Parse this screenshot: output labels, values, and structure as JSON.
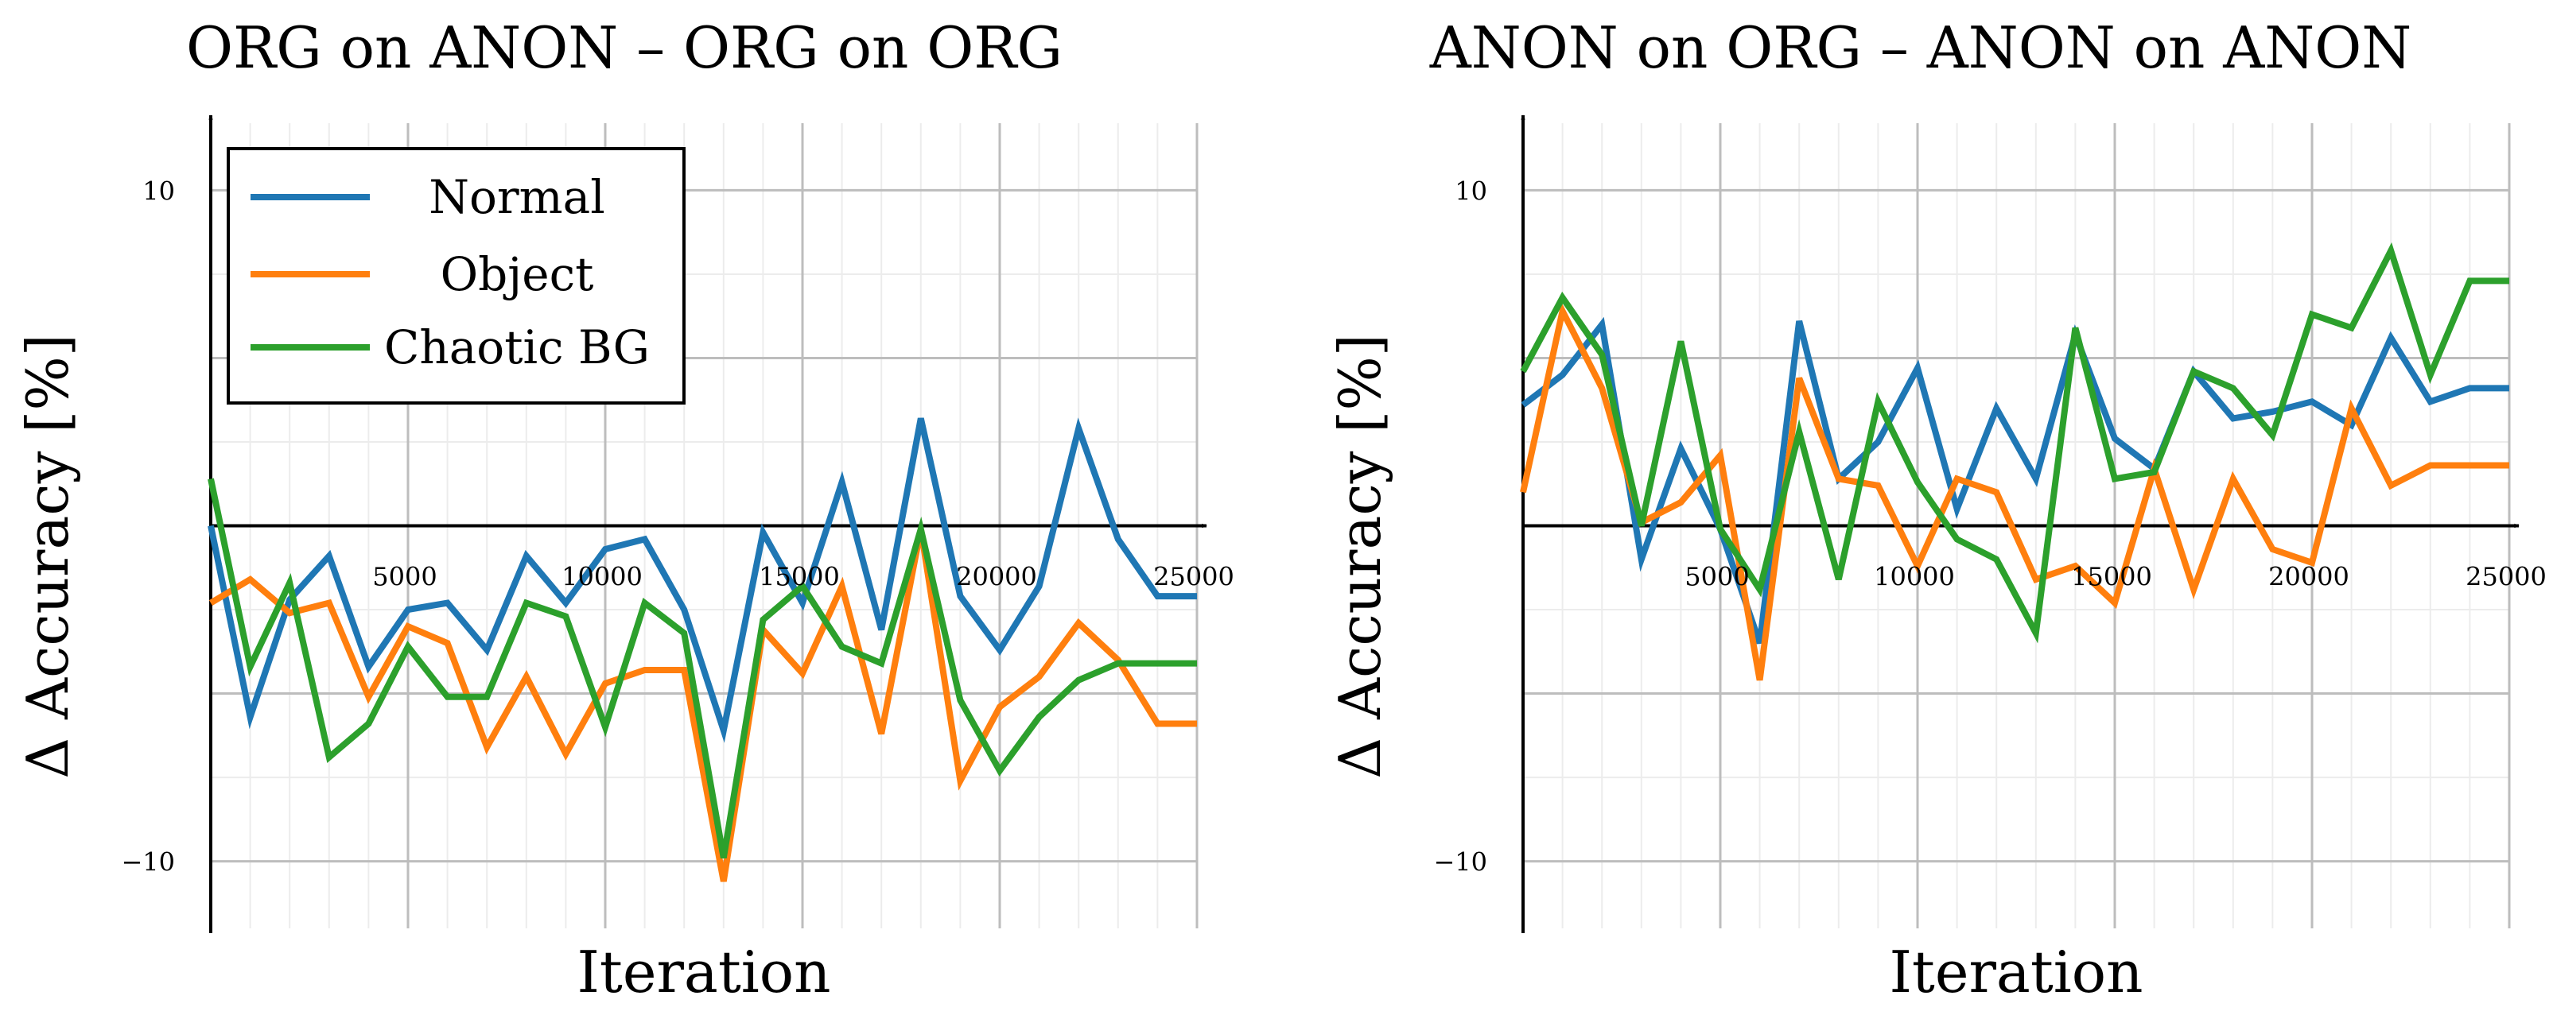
{
  "chart_data": [
    {
      "type": "line",
      "title": "ORG on ANON – ORG on ORG",
      "xlabel": "Iteration",
      "ylabel": "Δ Accuracy [%]",
      "xlim": [
        0,
        25000
      ],
      "ylim": [
        -12,
        12
      ],
      "xticks": [
        5000,
        10000,
        15000,
        20000,
        25000
      ],
      "xtick_labels": [
        "5000",
        "10000",
        "15000",
        "20000",
        "25000"
      ],
      "yticks": [
        -10,
        10
      ],
      "ytick_labels": [
        "−10",
        "10"
      ],
      "legend": "top-left",
      "x": [
        0,
        1000,
        2000,
        3000,
        4000,
        5000,
        6000,
        7000,
        8000,
        9000,
        10000,
        11000,
        12000,
        13000,
        14000,
        15000,
        16000,
        17000,
        18000,
        19000,
        20000,
        21000,
        22000,
        23000,
        24000,
        25000
      ],
      "series": [
        {
          "name": "Normal",
          "color": "#1f77b4",
          "values": [
            0,
            -5.7,
            -2.2,
            -0.9,
            -4.2,
            -2.5,
            -2.3,
            -3.7,
            -0.9,
            -2.3,
            -0.7,
            -0.4,
            -2.5,
            -6.1,
            -0.2,
            -2.3,
            1.3,
            -3.1,
            3.2,
            -2.1,
            -3.7,
            -1.8,
            2.9,
            -0.4,
            -2.1,
            -2.1
          ]
        },
        {
          "name": "Object",
          "color": "#ff7f0e",
          "values": [
            -2.3,
            -1.6,
            -2.6,
            -2.3,
            -5.1,
            -3.0,
            -3.5,
            -6.6,
            -4.5,
            -6.8,
            -4.7,
            -4.3,
            -4.3,
            -10.6,
            -3.1,
            -4.4,
            -1.8,
            -6.2,
            -0.1,
            -7.6,
            -5.4,
            -4.5,
            -2.9,
            -4.0,
            -5.9,
            -5.9
          ]
        },
        {
          "name": "Chaotic BG",
          "color": "#2ca02c",
          "values": [
            1.4,
            -4.2,
            -1.7,
            -6.9,
            -5.9,
            -3.6,
            -5.1,
            -5.1,
            -2.3,
            -2.7,
            -6.0,
            -2.3,
            -3.2,
            -9.9,
            -2.8,
            -1.8,
            -3.6,
            -4.1,
            -0.1,
            -5.2,
            -7.3,
            -5.7,
            -4.6,
            -4.1,
            -4.1,
            -4.1
          ]
        }
      ]
    },
    {
      "type": "line",
      "title": "ANON on ORG – ANON on ANON",
      "xlabel": "Iteration",
      "ylabel": "Δ Accuracy [%]",
      "xlim": [
        0,
        25000
      ],
      "ylim": [
        -12,
        12
      ],
      "xticks": [
        5000,
        10000,
        15000,
        20000,
        25000
      ],
      "xtick_labels": [
        "5000",
        "10000",
        "15000",
        "20000",
        "25000"
      ],
      "yticks": [
        -10,
        10
      ],
      "ytick_labels": [
        "−10",
        "10"
      ],
      "x": [
        0,
        1000,
        2000,
        3000,
        4000,
        5000,
        6000,
        7000,
        8000,
        9000,
        10000,
        11000,
        12000,
        13000,
        14000,
        15000,
        16000,
        17000,
        18000,
        19000,
        20000,
        21000,
        22000,
        23000,
        24000,
        25000
      ],
      "series": [
        {
          "name": "Normal",
          "color": "#1f77b4",
          "values": [
            3.6,
            4.5,
            6.0,
            -1.0,
            2.3,
            -0.1,
            -3.5,
            6.1,
            1.4,
            2.5,
            4.7,
            0.5,
            3.5,
            1.4,
            5.7,
            2.6,
            1.7,
            4.6,
            3.2,
            3.4,
            3.7,
            3.0,
            5.6,
            3.7,
            4.1,
            4.1
          ]
        },
        {
          "name": "Object",
          "color": "#ff7f0e",
          "values": [
            1.0,
            6.4,
            4.1,
            0.1,
            0.7,
            2.1,
            -4.6,
            4.4,
            1.4,
            1.2,
            -1.2,
            1.4,
            1.0,
            -1.6,
            -1.2,
            -2.3,
            1.7,
            -1.9,
            1.4,
            -0.7,
            -1.1,
            3.5,
            1.2,
            1.8,
            1.8,
            1.8
          ]
        },
        {
          "name": "Chaotic BG",
          "color": "#2ca02c",
          "values": [
            4.6,
            6.8,
            5.1,
            0.0,
            5.5,
            -0.1,
            -1.9,
            2.8,
            -1.6,
            3.7,
            1.3,
            -0.4,
            -1.0,
            -3.2,
            5.9,
            1.4,
            1.6,
            4.6,
            4.1,
            2.7,
            6.3,
            5.9,
            8.2,
            4.5,
            7.3,
            7.3
          ]
        }
      ]
    }
  ]
}
